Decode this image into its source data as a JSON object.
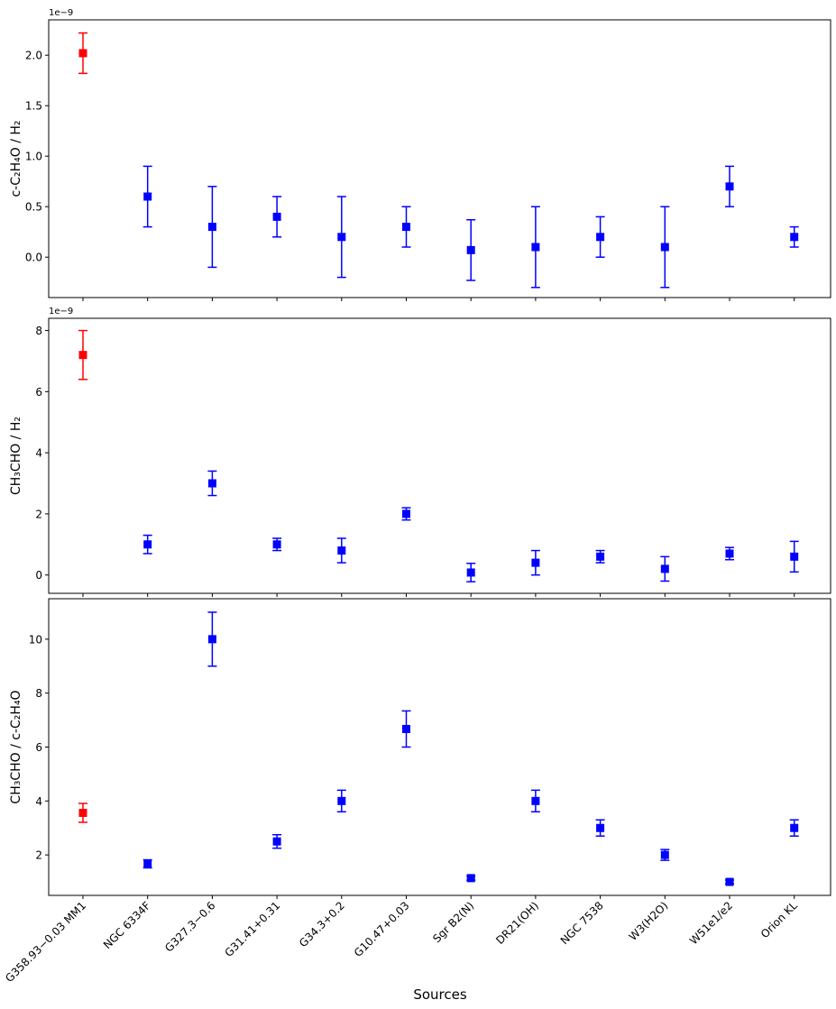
{
  "chart_data": {
    "type": "scatter",
    "xlabel": "Sources",
    "categories": [
      "G358.93−0.03 MM1",
      "NGC 6334F",
      "G327.3−0.6",
      "G31.41+0.31",
      "G34.3+0.2",
      "G10.47+0.03",
      "Sgr B2(N)",
      "DR21(OH)",
      "NGC 7538",
      "W3(H2O)",
      "W51e1/e2",
      "Orion KL"
    ],
    "highlight_color": "#ff0000",
    "series_color": "#0000ff",
    "panels": [
      {
        "ylabel": "c-C₂H₄O / H₂",
        "offset_text": "1e−9",
        "ylim": [
          -0.4,
          2.35
        ],
        "yticks": [
          0.0,
          0.5,
          1.0,
          1.5,
          2.0
        ],
        "ytick_labels": [
          "0.0",
          "0.5",
          "1.0",
          "1.5",
          "2.0"
        ],
        "values": [
          2.02,
          0.6,
          0.3,
          0.4,
          0.2,
          0.3,
          0.07,
          0.1,
          0.2,
          0.1,
          0.7,
          0.2
        ],
        "errors": [
          0.2,
          0.3,
          0.4,
          0.2,
          0.4,
          0.2,
          0.3,
          0.4,
          0.2,
          0.4,
          0.2,
          0.1
        ]
      },
      {
        "ylabel": "CH₃CHO / H₂",
        "offset_text": "1e−9",
        "ylim": [
          -0.6,
          8.4
        ],
        "yticks": [
          0,
          2,
          4,
          6,
          8
        ],
        "ytick_labels": [
          "0",
          "2",
          "4",
          "6",
          "8"
        ],
        "values": [
          7.2,
          1.0,
          3.0,
          1.0,
          0.8,
          2.0,
          0.08,
          0.4,
          0.6,
          0.2,
          0.7,
          0.6
        ],
        "errors": [
          0.8,
          0.3,
          0.4,
          0.2,
          0.4,
          0.2,
          0.3,
          0.4,
          0.2,
          0.4,
          0.2,
          0.5
        ]
      },
      {
        "ylabel": "CH₃CHO / c-C₂H₄O",
        "offset_text": "",
        "ylim": [
          0.5,
          11.5
        ],
        "yticks": [
          2,
          4,
          6,
          8,
          10
        ],
        "ytick_labels": [
          "2",
          "4",
          "6",
          "8",
          "10"
        ],
        "values": [
          3.56,
          1.67,
          10.0,
          2.5,
          4.0,
          6.67,
          1.14,
          4.0,
          3.0,
          2.0,
          1.0,
          3.0
        ],
        "errors": [
          0.35,
          0.15,
          1.0,
          0.25,
          0.4,
          0.67,
          0.08,
          0.4,
          0.3,
          0.2,
          0.07,
          0.3
        ]
      }
    ]
  }
}
